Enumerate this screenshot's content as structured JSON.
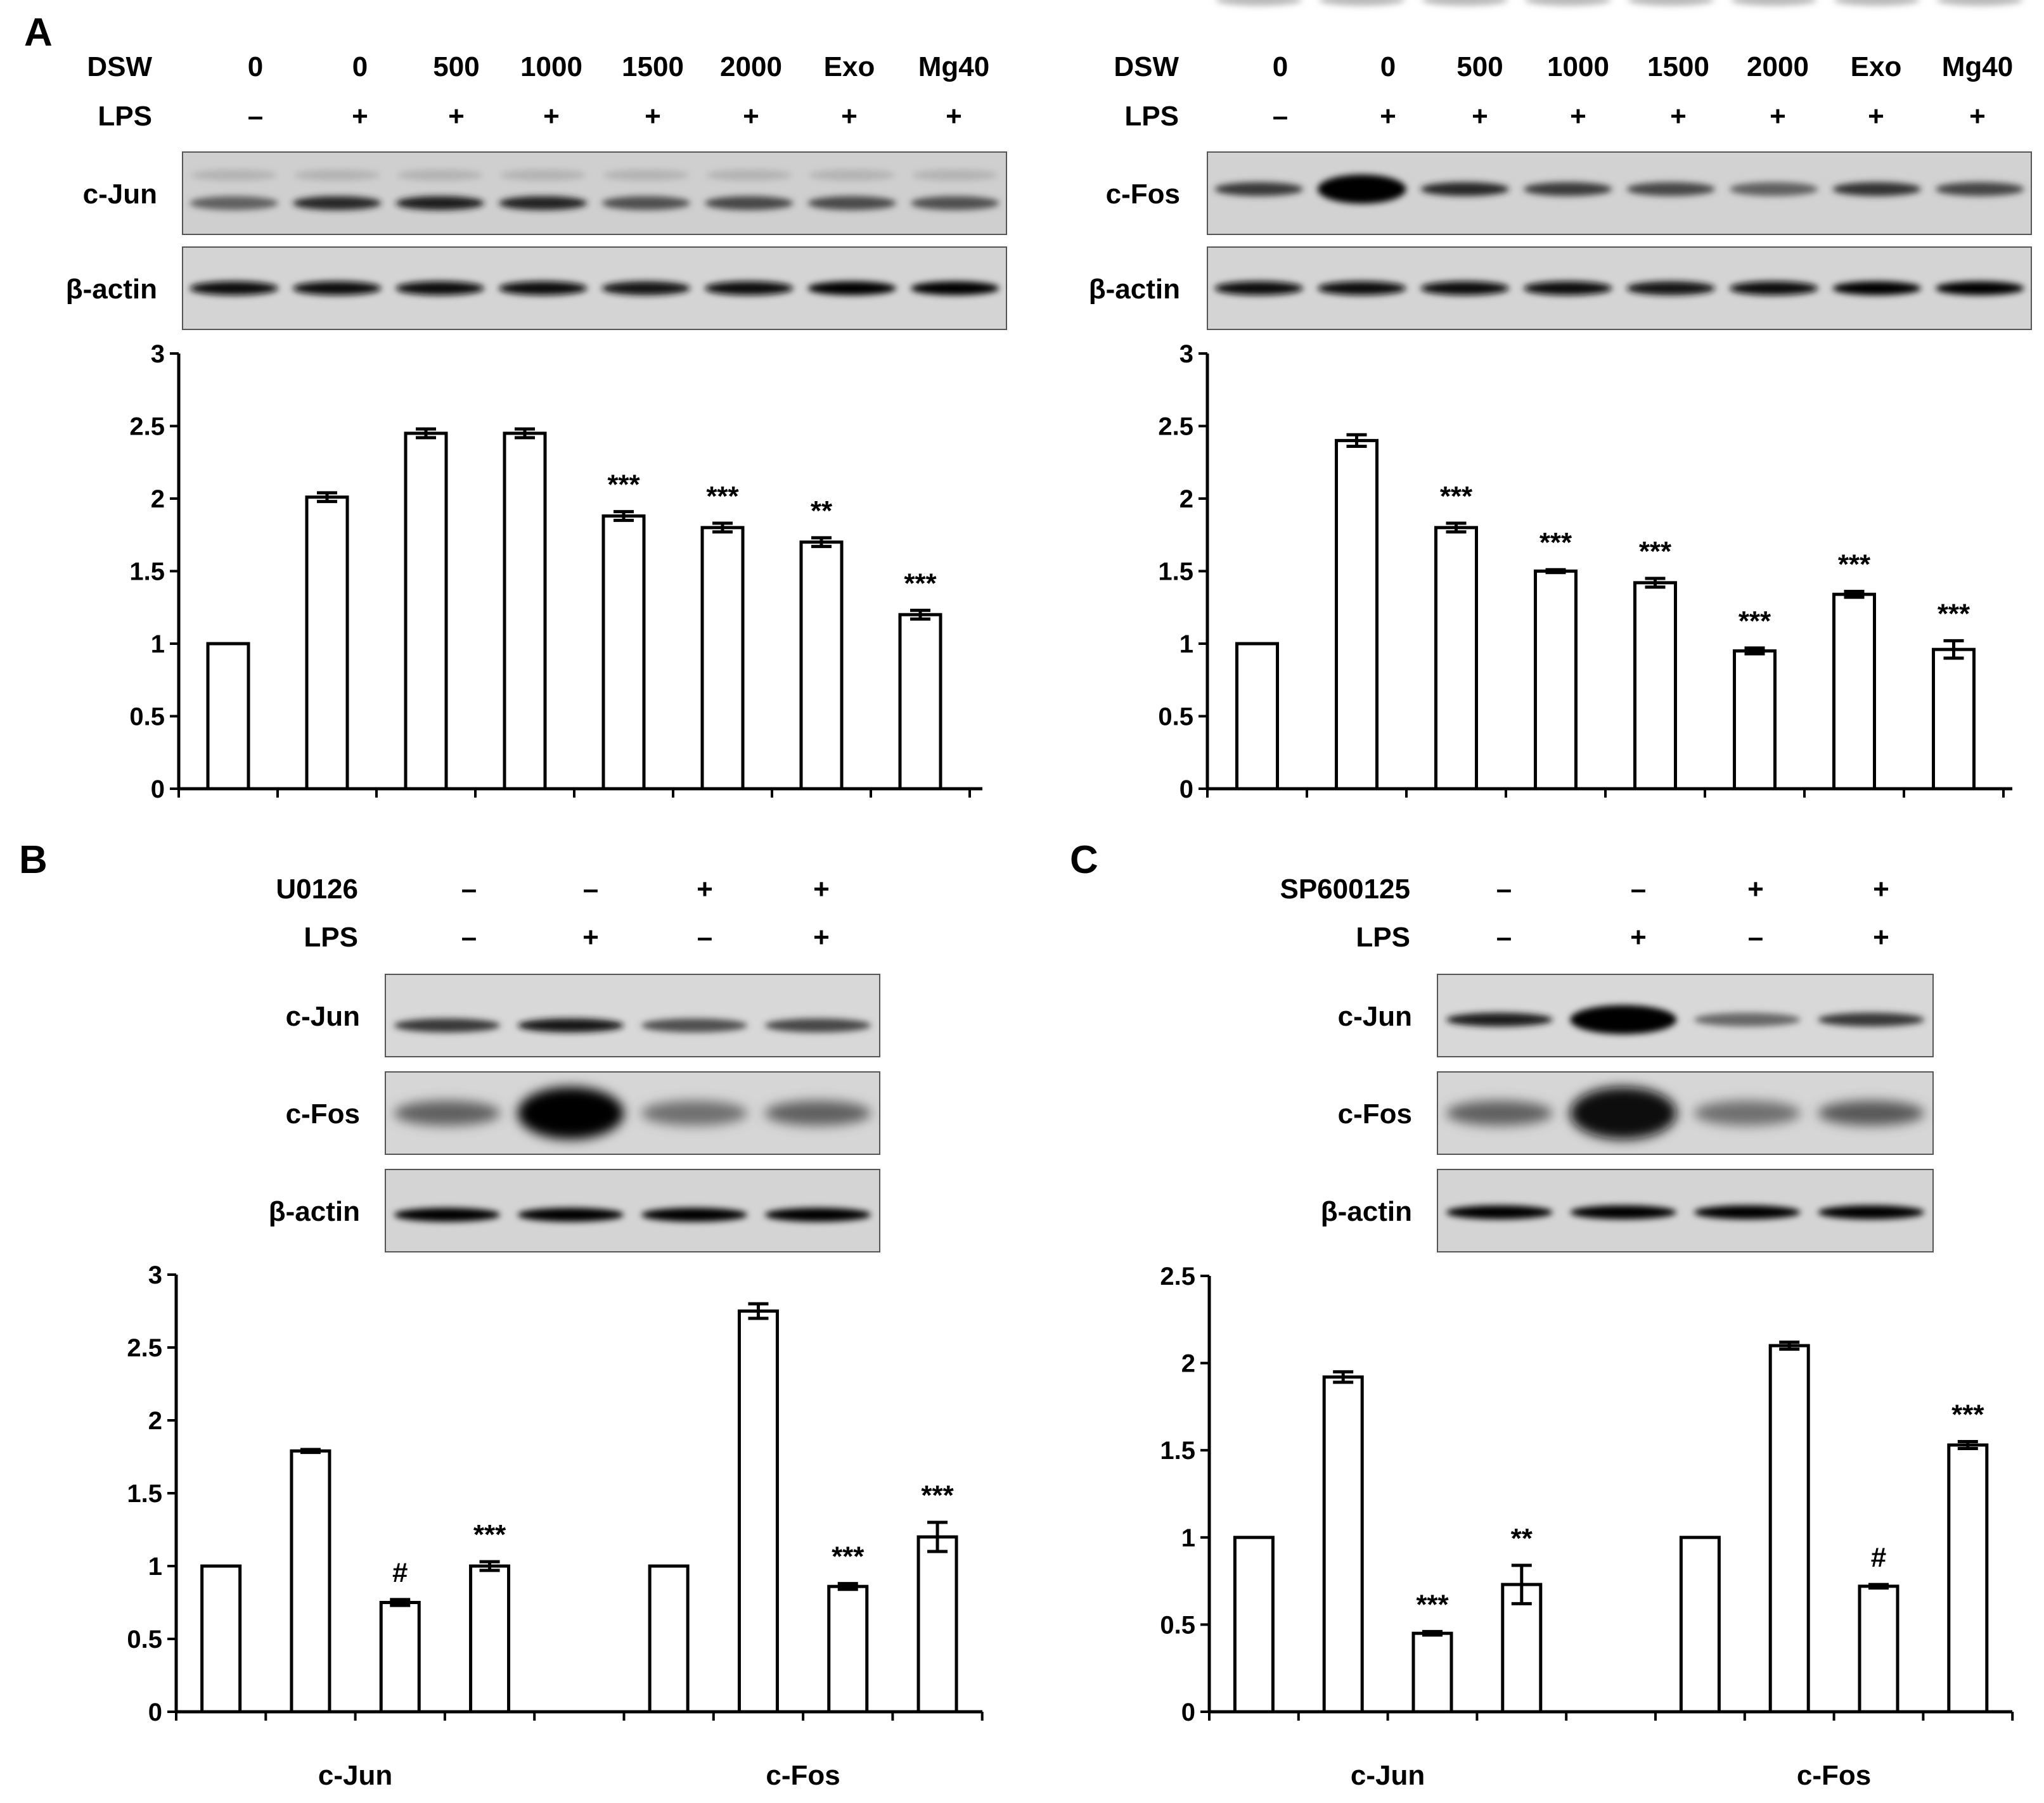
{
  "panels": {
    "A": {
      "letter": "A"
    },
    "B": {
      "letter": "B"
    },
    "C": {
      "letter": "C"
    }
  },
  "chart_data": [
    {
      "id": "A_left",
      "type": "bar",
      "blot_header": {
        "rows": [
          {
            "label": "DSW",
            "values": [
              "0",
              "0",
              "500",
              "1000",
              "1500",
              "2000",
              "Exo",
              "Mg40"
            ]
          },
          {
            "label": "LPS",
            "values": [
              "–",
              "+",
              "+",
              "+",
              "+",
              "+",
              "+",
              "+"
            ]
          }
        ]
      },
      "blots": [
        {
          "label": "c-Jun"
        },
        {
          "label": "β-actin"
        }
      ],
      "categories": [
        "0",
        "0",
        "500",
        "1000",
        "1500",
        "2000",
        "Exo",
        "Mg40"
      ],
      "values": [
        1.0,
        2.01,
        2.45,
        2.45,
        1.88,
        1.8,
        1.7,
        1.2
      ],
      "errors": [
        0,
        0.03,
        0.03,
        0.03,
        0.03,
        0.03,
        0.03,
        0.03
      ],
      "annotations": [
        "",
        "",
        "",
        "",
        "***",
        "***",
        "**",
        "***"
      ],
      "ylim": [
        0,
        3
      ],
      "yticks": [
        "0",
        "0.5",
        "1",
        "1.5",
        "2",
        "2.5",
        "3"
      ],
      "xlabel": "",
      "ylabel": ""
    },
    {
      "id": "A_right",
      "type": "bar",
      "blot_header": {
        "rows": [
          {
            "label": "DSW",
            "values": [
              "0",
              "0",
              "500",
              "1000",
              "1500",
              "2000",
              "Exo",
              "Mg40"
            ]
          },
          {
            "label": "LPS",
            "values": [
              "–",
              "+",
              "+",
              "+",
              "+",
              "+",
              "+",
              "+"
            ]
          }
        ]
      },
      "blots": [
        {
          "label": "c-Fos"
        },
        {
          "label": "β-actin"
        }
      ],
      "categories": [
        "0",
        "0",
        "500",
        "1000",
        "1500",
        "2000",
        "Exo",
        "Mg40"
      ],
      "values": [
        1.0,
        2.4,
        1.8,
        1.5,
        1.42,
        0.95,
        1.34,
        0.96
      ],
      "errors": [
        0,
        0.04,
        0.03,
        0.01,
        0.03,
        0.02,
        0.02,
        0.06
      ],
      "annotations": [
        "",
        "",
        "***",
        "***",
        "***",
        "***",
        "***",
        "***"
      ],
      "ylim": [
        0,
        3
      ],
      "yticks": [
        "0",
        "0.5",
        "1",
        "1.5",
        "2",
        "2.5",
        "3"
      ],
      "xlabel": "",
      "ylabel": ""
    },
    {
      "id": "B",
      "type": "bar",
      "blot_header": {
        "rows": [
          {
            "label": "U0126",
            "values": [
              "–",
              "–",
              "+",
              "+"
            ]
          },
          {
            "label": "LPS",
            "values": [
              "–",
              "+",
              "–",
              "+"
            ]
          }
        ]
      },
      "blots": [
        {
          "label": "c-Jun"
        },
        {
          "label": "c-Fos"
        },
        {
          "label": "β-actin"
        }
      ],
      "groups": [
        "c-Jun",
        "c-Fos"
      ],
      "series": [
        {
          "group": "c-Jun",
          "values": [
            1.0,
            1.79,
            0.75,
            1.0
          ],
          "errors": [
            0,
            0.01,
            0.02,
            0.03
          ],
          "annotations": [
            "",
            "",
            "#",
            "***"
          ]
        },
        {
          "group": "c-Fos",
          "values": [
            1.0,
            2.75,
            0.86,
            1.2
          ],
          "errors": [
            0,
            0.05,
            0.02,
            0.1
          ],
          "annotations": [
            "",
            "",
            "***",
            "***"
          ]
        }
      ],
      "ylim": [
        0,
        3
      ],
      "yticks": [
        "0",
        "0.5",
        "1",
        "1.5",
        "2",
        "2.5",
        "3"
      ],
      "xlabel": "",
      "ylabel": ""
    },
    {
      "id": "C",
      "type": "bar",
      "blot_header": {
        "rows": [
          {
            "label": "SP600125",
            "values": [
              "–",
              "–",
              "+",
              "+"
            ]
          },
          {
            "label": "LPS",
            "values": [
              "–",
              "+",
              "–",
              "+"
            ]
          }
        ]
      },
      "blots": [
        {
          "label": "c-Jun"
        },
        {
          "label": "c-Fos"
        },
        {
          "label": "β-actin"
        }
      ],
      "groups": [
        "c-Jun",
        "c-Fos"
      ],
      "series": [
        {
          "group": "c-Jun",
          "values": [
            1.0,
            1.92,
            0.45,
            0.73
          ],
          "errors": [
            0,
            0.03,
            0.01,
            0.11
          ],
          "annotations": [
            "",
            "",
            "***",
            "**"
          ]
        },
        {
          "group": "c-Fos",
          "values": [
            1.0,
            2.1,
            0.72,
            1.53
          ],
          "errors": [
            0,
            0.02,
            0.01,
            0.02
          ],
          "annotations": [
            "",
            "",
            "#",
            "***"
          ]
        }
      ],
      "ylim": [
        0,
        2.5
      ],
      "yticks": [
        "0",
        "0.5",
        "1",
        "1.5",
        "2",
        "2.5"
      ],
      "xlabel": "",
      "ylabel": ""
    }
  ]
}
